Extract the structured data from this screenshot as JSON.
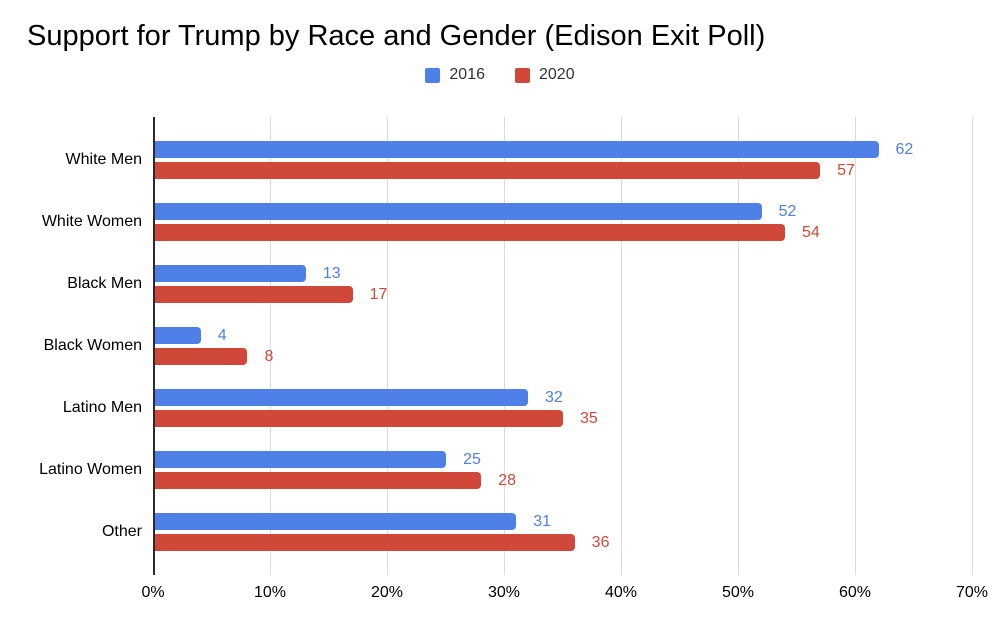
{
  "chart_data": {
    "type": "bar",
    "orientation": "horizontal",
    "title": "Support for Trump by Race and Gender (Edison Exit Poll)",
    "categories": [
      "White Men",
      "White Women",
      "Black Men",
      "Black Women",
      "Latino Men",
      "Latino Women",
      "Other"
    ],
    "series": [
      {
        "name": "2016",
        "color": "#4e80e8",
        "values": [
          62,
          52,
          13,
          4,
          32,
          25,
          31
        ]
      },
      {
        "name": "2020",
        "color": "#d0483a",
        "values": [
          57,
          54,
          17,
          8,
          35,
          28,
          36
        ]
      }
    ],
    "x_axis": {
      "min": 0,
      "max": 70,
      "tick_step": 10,
      "tick_labels": [
        "0%",
        "10%",
        "20%",
        "30%",
        "40%",
        "50%",
        "60%",
        "70%"
      ]
    },
    "value_labels_shown": true,
    "legend_position": "top",
    "grid": {
      "vertical": true,
      "gridline_color": "#dcdcdc",
      "axis_line_color": "#2b2b2b"
    },
    "background_color": "#ffffff"
  }
}
